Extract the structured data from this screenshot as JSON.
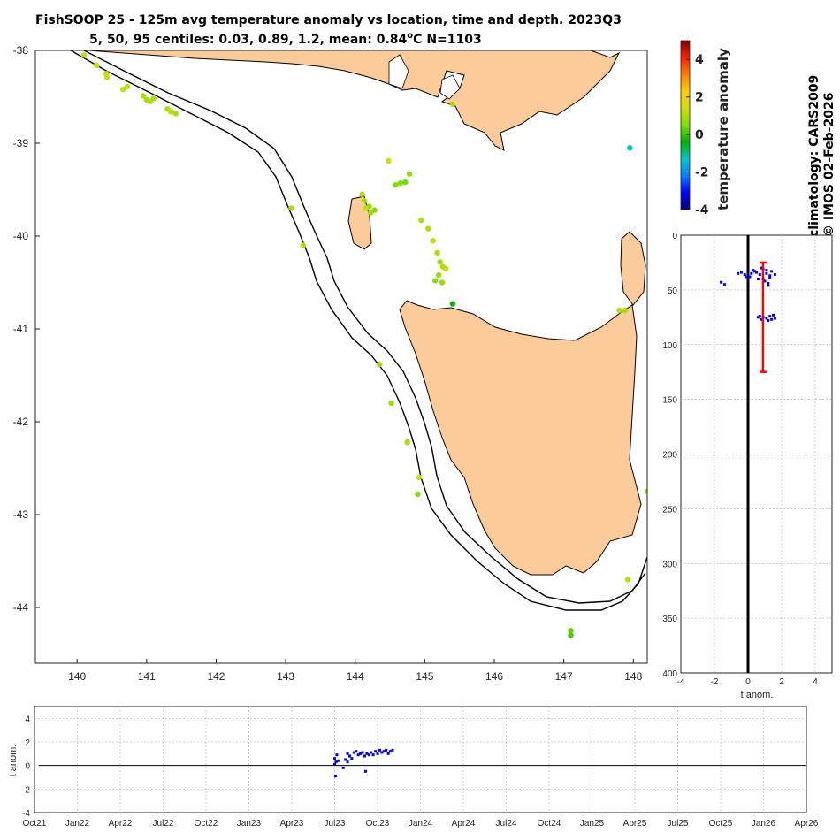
{
  "title_line1": "FishSOOP 25 - 125m avg temperature anomaly vs location, time and depth. 2023Q3",
  "title_line2": "5, 50, 95 centiles: 0.03, 0.89, 1.2, mean: 0.84",
  "title_unit": "o",
  "title_unit_c": "C N=1103",
  "credit_line1": "climatology: CARS2009",
  "credit_line2": "© IMOS 02-Feb-2026",
  "colors": {
    "land": "#fbcb9a",
    "profile_points": "#0000ff",
    "centile_bar": "#ff0000"
  },
  "chart_data": [
    {
      "type": "scatter",
      "subtype": "map",
      "xlim": [
        139.4,
        148.2
      ],
      "ylim": [
        -44.6,
        -38
      ],
      "x_ticks": [
        "140",
        "141",
        "142",
        "143",
        "144",
        "145",
        "146",
        "147",
        "148"
      ],
      "y_ticks": [
        "-38",
        "-39",
        "-40",
        "-41",
        "-42",
        "-43",
        "-44"
      ],
      "colorbar": {
        "label": "temperature anomaly",
        "range": [
          -4,
          5
        ],
        "ticks": [
          "4",
          "2",
          "0",
          "-2",
          "-4"
        ],
        "colormap": [
          "#000080",
          "#0000ff",
          "#0080ff",
          "#00c8c8",
          "#00b000",
          "#80e000",
          "#d0e000",
          "#ffd000",
          "#ff8000",
          "#ff2000",
          "#800000"
        ]
      },
      "points": [
        [
          140.1,
          -38.05,
          1.2
        ],
        [
          140.28,
          -38.16,
          1.3
        ],
        [
          140.42,
          -38.25,
          1.2
        ],
        [
          140.43,
          -38.29,
          1.3
        ],
        [
          140.66,
          -38.42,
          1.2
        ],
        [
          140.72,
          -38.39,
          1.1
        ],
        [
          140.95,
          -38.49,
          1.1
        ],
        [
          141.0,
          -38.53,
          1.0
        ],
        [
          141.05,
          -38.55,
          1.0
        ],
        [
          141.1,
          -38.52,
          0.9
        ],
        [
          141.3,
          -38.63,
          1.0
        ],
        [
          141.35,
          -38.66,
          1.1
        ],
        [
          141.42,
          -38.68,
          0.9
        ],
        [
          143.08,
          -39.7,
          1.0
        ],
        [
          143.25,
          -40.1,
          0.9
        ],
        [
          144.48,
          -39.19,
          1.5
        ],
        [
          144.58,
          -39.45,
          0.5
        ],
        [
          144.65,
          -39.43,
          0.5
        ],
        [
          144.72,
          -39.42,
          0.4
        ],
        [
          144.78,
          -39.33,
          0.6
        ],
        [
          144.1,
          -39.55,
          1.0
        ],
        [
          144.13,
          -39.62,
          0.9
        ],
        [
          144.2,
          -39.68,
          0.7
        ],
        [
          144.28,
          -39.72,
          0.6
        ],
        [
          144.15,
          -39.7,
          1.3
        ],
        [
          144.22,
          -39.75,
          0.8
        ],
        [
          144.95,
          -39.83,
          1.0
        ],
        [
          145.05,
          -39.92,
          1.0
        ],
        [
          145.12,
          -40.05,
          1.2
        ],
        [
          145.18,
          -40.18,
          1.0
        ],
        [
          145.22,
          -40.28,
          0.9
        ],
        [
          145.26,
          -40.33,
          1.1
        ],
        [
          145.3,
          -40.35,
          1.2
        ],
        [
          145.2,
          -40.42,
          0.8
        ],
        [
          145.15,
          -40.48,
          0.6
        ],
        [
          145.25,
          -40.5,
          0.7
        ],
        [
          145.4,
          -40.73,
          -0.3
        ],
        [
          144.35,
          -41.38,
          0.9
        ],
        [
          144.52,
          -41.8,
          0.8
        ],
        [
          144.75,
          -42.22,
          0.9
        ],
        [
          144.92,
          -42.6,
          1.3
        ],
        [
          144.9,
          -42.78,
          0.5
        ],
        [
          147.8,
          -40.8,
          1.0
        ],
        [
          147.88,
          -40.8,
          0.9
        ],
        [
          147.95,
          -39.05,
          -1.2
        ],
        [
          148.2,
          -42.75,
          0.7
        ],
        [
          147.92,
          -43.7,
          1.2
        ],
        [
          147.1,
          -44.25,
          0.3
        ],
        [
          147.1,
          -44.3,
          0.1
        ],
        [
          145.4,
          -38.58,
          0.9
        ]
      ]
    },
    {
      "type": "scatter",
      "subtype": "anomaly-vs-depth",
      "xlim": [
        -4,
        5
      ],
      "ylim": [
        0,
        400
      ],
      "x_ticks": [
        "-4",
        "-2",
        "0",
        "2",
        "4"
      ],
      "y_ticks": [
        "0",
        "50",
        "100",
        "150",
        "200",
        "250",
        "300",
        "350",
        "400"
      ],
      "xlabel": "t anom.",
      "centile_bar": {
        "x": 0.89,
        "depth_top": 25,
        "depth_bottom": 125
      },
      "points": [
        [
          -0.6,
          35
        ],
        [
          -0.4,
          34
        ],
        [
          -0.2,
          36
        ],
        [
          0.1,
          38
        ],
        [
          0.3,
          32
        ],
        [
          0.5,
          34
        ],
        [
          0.7,
          36
        ],
        [
          0.9,
          31
        ],
        [
          1.1,
          35
        ],
        [
          1.3,
          37
        ],
        [
          0.6,
          40
        ],
        [
          1.0,
          42
        ],
        [
          1.2,
          44
        ],
        [
          0.8,
          30
        ],
        [
          1.4,
          33
        ],
        [
          -1.6,
          43
        ],
        [
          -1.4,
          45
        ],
        [
          1.2,
          46
        ],
        [
          0.4,
          33
        ],
        [
          0.2,
          35
        ],
        [
          0.9,
          40
        ],
        [
          1.3,
          39
        ],
        [
          0.7,
          74
        ],
        [
          0.9,
          75
        ],
        [
          1.1,
          76
        ],
        [
          1.3,
          74
        ],
        [
          1.5,
          73
        ],
        [
          1.6,
          76
        ],
        [
          1.2,
          78
        ],
        [
          0.8,
          77
        ],
        [
          0.6,
          75
        ],
        [
          1.4,
          77
        ],
        [
          -0.1,
          38
        ],
        [
          0.0,
          39
        ],
        [
          1.1,
          32
        ],
        [
          1.6,
          36
        ]
      ]
    },
    {
      "type": "scatter",
      "subtype": "anomaly-vs-time",
      "xlim": [
        0,
        18
      ],
      "ylim": [
        -4,
        5
      ],
      "x_ticks": [
        "Oct21",
        "Jan22",
        "Apr22",
        "Jul22",
        "Oct22",
        "Jan23",
        "Apr23",
        "Jul23",
        "Oct23",
        "Jan24",
        "Apr24",
        "Jul24",
        "Oct24",
        "Jan25",
        "Apr25",
        "Jul25",
        "Oct25",
        "Jan26",
        "Apr26"
      ],
      "y_ticks": [
        "4",
        "2",
        "0",
        "-2",
        "-4"
      ],
      "ylabel": "t anom.",
      "points": [
        [
          7.0,
          0.1
        ],
        [
          7.0,
          0.6
        ],
        [
          7.02,
          -0.9
        ],
        [
          7.03,
          0.3
        ],
        [
          7.05,
          0.9
        ],
        [
          7.08,
          0.4
        ],
        [
          7.2,
          -0.2
        ],
        [
          7.25,
          0.5
        ],
        [
          7.3,
          0.3
        ],
        [
          7.35,
          0.8
        ],
        [
          7.4,
          0.6
        ],
        [
          7.45,
          1.1
        ],
        [
          7.5,
          1.2
        ],
        [
          7.55,
          0.9
        ],
        [
          7.6,
          1.0
        ],
        [
          7.65,
          1.1
        ],
        [
          7.7,
          0.8
        ],
        [
          7.75,
          1.0
        ],
        [
          7.8,
          0.9
        ],
        [
          7.85,
          1.1
        ],
        [
          7.9,
          0.9
        ],
        [
          7.95,
          1.2
        ],
        [
          8.0,
          1.0
        ],
        [
          8.05,
          1.3
        ],
        [
          8.1,
          1.1
        ],
        [
          8.15,
          1.2
        ],
        [
          8.2,
          1.3
        ],
        [
          8.25,
          1.0
        ],
        [
          8.3,
          1.2
        ],
        [
          8.35,
          1.3
        ],
        [
          7.72,
          -0.5
        ],
        [
          7.3,
          1.0
        ]
      ]
    }
  ]
}
